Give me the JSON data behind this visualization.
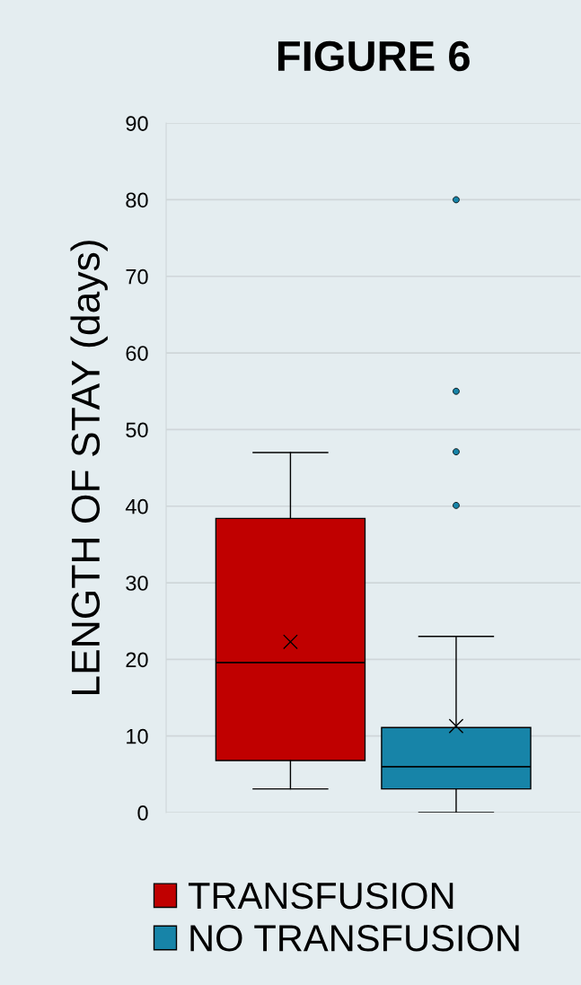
{
  "chart_data": {
    "type": "box",
    "title": "FIGURE 6",
    "ylabel": "LENGTH OF STAY (days)",
    "categories": [
      null
    ],
    "ylim": [
      0,
      90
    ],
    "yticks": [
      0,
      10,
      20,
      30,
      40,
      50,
      60,
      70,
      80,
      90
    ],
    "grid": "y",
    "legend": "bottom",
    "marker": "cross",
    "series": [
      {
        "name": "TRANSFUSION",
        "color": "#c00000",
        "boxes": [
          {
            "low": 3.1,
            "q1": 6.8,
            "median": 19.6,
            "q3": 38.4,
            "high": 47.0,
            "mean": 22.3
          }
        ]
      },
      {
        "name": "NO TRANSFUSION",
        "color": "#1784a8",
        "boxes": [
          {
            "low": 0,
            "q1": 3.1,
            "median": 6.0,
            "q3": 11.1,
            "high": 23.0,
            "mean": 11.3,
            "outliers": [
              40.1,
              47.1,
              55.0,
              80.0
            ]
          }
        ]
      }
    ]
  }
}
